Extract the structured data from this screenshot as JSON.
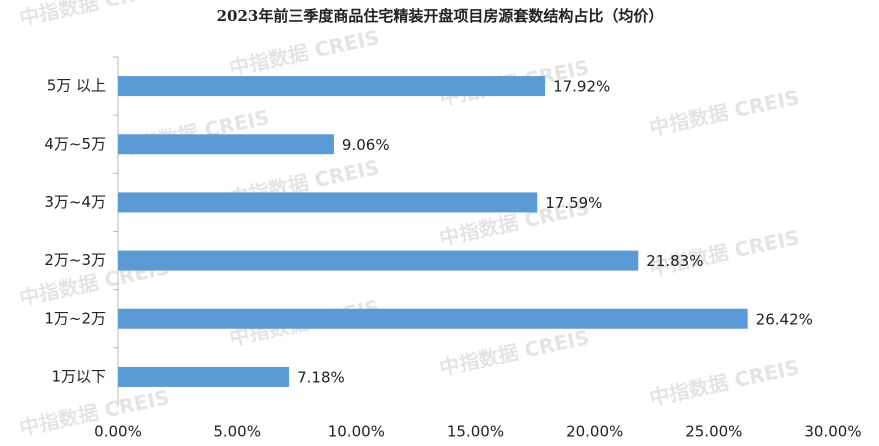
{
  "chart_data": {
    "type": "barh",
    "title": "2023年前三季度商品住宅精装开盘项目房源套数结构占比（均价）",
    "watermark": "中指数据 CREIS",
    "categories": [
      "5万 以上",
      "4万~5万",
      "3万~4万",
      "2万~3万",
      "1万~2万",
      "1万以下"
    ],
    "values": [
      17.92,
      9.06,
      17.59,
      21.83,
      26.42,
      7.18
    ],
    "value_labels": [
      "17.92%",
      "9.06%",
      "17.59%",
      "21.83%",
      "26.42%",
      "7.18%"
    ],
    "color": "#5b9bd5",
    "xlim": [
      0,
      30
    ],
    "xticks": [
      {
        "value": 0,
        "label": "0.00%"
      },
      {
        "value": 5,
        "label": "5.00%"
      },
      {
        "value": 10,
        "label": "10.00%"
      },
      {
        "value": 15,
        "label": "15.00%"
      },
      {
        "value": 20,
        "label": "20.00%"
      },
      {
        "value": 25,
        "label": "25.00%"
      },
      {
        "value": 30,
        "label": "30.00%"
      }
    ],
    "grid": false
  }
}
